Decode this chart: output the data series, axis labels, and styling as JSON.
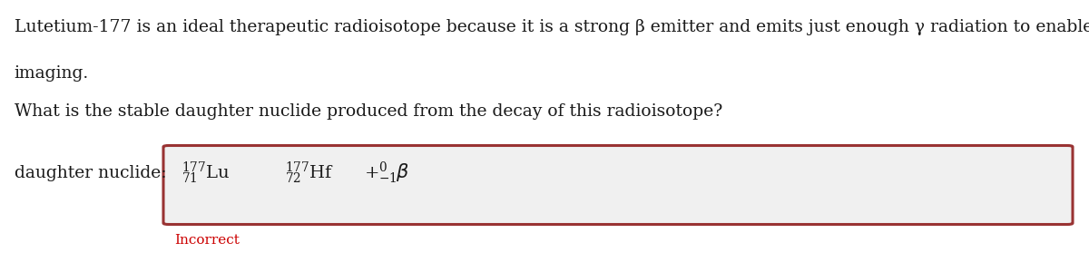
{
  "bg_color": "#ffffff",
  "text_color": "#1a1a1a",
  "paragraph1_line1": "Lutetium-177 is an ideal therapeutic radioisotope because it is a strong β emitter and emits just enough γ radiation to enable",
  "paragraph1_line2": "imaging.",
  "paragraph2": "What is the stable daughter nuclide produced from the decay of this radioisotope?",
  "label_text": "daughter nuclide:",
  "incorrect_text": "Incorrect",
  "incorrect_color": "#cc0000",
  "box_border_color": "#993333",
  "box_fill_color": "#f0f0f0",
  "font_size_para": 13.5,
  "font_size_label": 13.5,
  "font_size_equation": 14,
  "font_size_incorrect": 11
}
